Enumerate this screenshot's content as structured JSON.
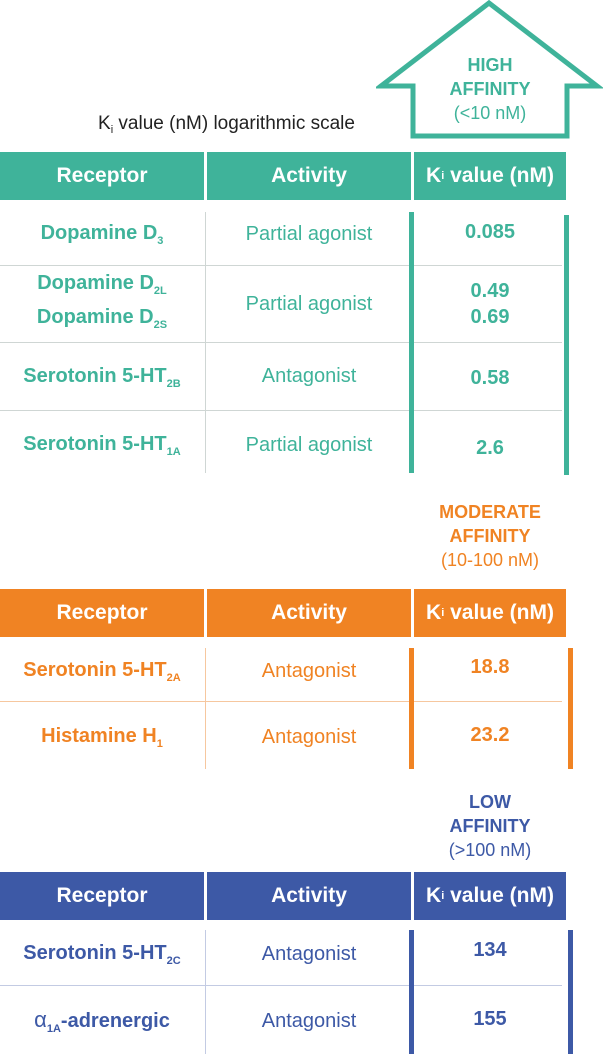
{
  "scale_label": {
    "k": "K",
    "i": "i",
    "rest": "value (nM) logarithmic scale"
  },
  "colors": {
    "high": "#3fb39a",
    "moderate": "#f08323",
    "low": "#3d59a6",
    "divider": "#cfd6d4"
  },
  "icons": {
    "high_arrow": "up-arrow-house-outline"
  },
  "columns": {
    "receptor": "Receptor",
    "activity": "Activity",
    "ki_k": "K",
    "ki_i": "i",
    "ki_rest": "value (nM)"
  },
  "high": {
    "title_line1": "HIGH",
    "title_line2": "AFFINITY",
    "range": "(<10 nM)",
    "rows": [
      {
        "name": "Dopamine D",
        "sub": "3",
        "activity": "Partial agonist",
        "ki": "0.085"
      },
      {
        "name": "Dopamine D",
        "sub": "2L",
        "name2": "Dopamine D",
        "sub2": "2S",
        "activity": "Partial agonist",
        "ki": "0.49",
        "ki2": "0.69"
      },
      {
        "name": "Serotonin 5-HT",
        "sub": "2B",
        "activity": "Antagonist",
        "ki": "0.58"
      },
      {
        "name": "Serotonin 5-HT",
        "sub": "1A",
        "activity": "Partial agonist",
        "ki": "2.6"
      }
    ]
  },
  "moderate": {
    "title_line1": "MODERATE",
    "title_line2": "AFFINITY",
    "range": "(10-100 nM)",
    "rows": [
      {
        "name": "Serotonin 5-HT",
        "sub": "2A",
        "activity": "Antagonist",
        "ki": "18.8"
      },
      {
        "name": "Histamine H",
        "sub": "1",
        "activity": "Antagonist",
        "ki": "23.2"
      }
    ]
  },
  "low": {
    "title_line1": "LOW",
    "title_line2": "AFFINITY",
    "range": "(>100 nM)",
    "rows": [
      {
        "name": "Serotonin 5-HT",
        "sub": "2C",
        "activity": "Antagonist",
        "ki": "134"
      },
      {
        "prefix": "α",
        "sub": "1A",
        "name": "-adrenergic",
        "activity": "Antagonist",
        "ki": "155"
      }
    ]
  }
}
